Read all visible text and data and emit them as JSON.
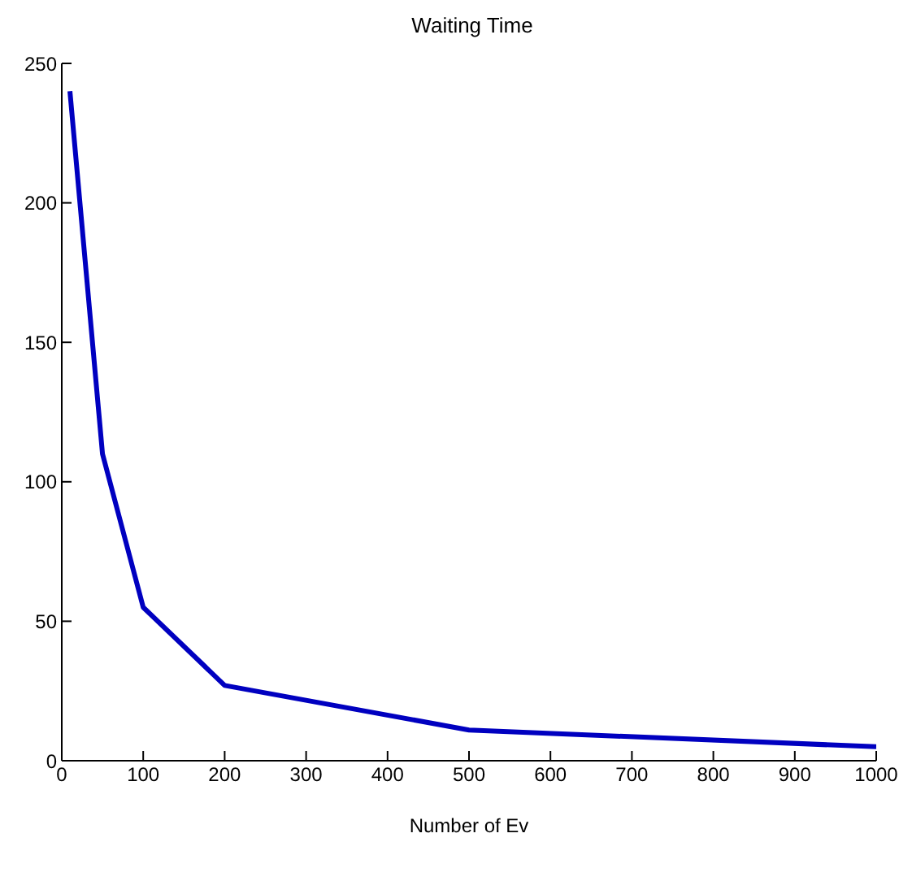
{
  "chart_data": {
    "type": "line",
    "title": "Waiting Time",
    "xlabel": "Number of Ev",
    "x": [
      10,
      50,
      100,
      200,
      500,
      1000
    ],
    "series": [
      {
        "color": "#0000c0",
        "values": [
          240,
          110,
          55,
          27,
          11,
          5
        ]
      }
    ],
    "xlim": [
      0,
      1000
    ],
    "xticks": [
      0,
      100,
      200,
      300,
      400,
      500,
      600,
      700,
      800,
      900,
      1000
    ],
    "ylim": [
      0,
      250
    ],
    "yticks": [
      0,
      50,
      100,
      150,
      200,
      250
    ],
    "grid": false,
    "legend": false,
    "marker": "none",
    "line_style": "solid"
  }
}
